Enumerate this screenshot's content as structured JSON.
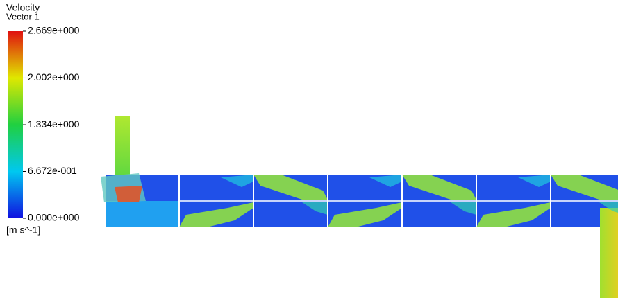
{
  "legend": {
    "title": "Velocity",
    "subtitle": "Vector 1",
    "ticks": [
      {
        "value": 0,
        "label": "0.000e+000"
      },
      {
        "value": 0.6672,
        "label": "6.672e-001"
      },
      {
        "value": 1.334,
        "label": "1.334e+000"
      },
      {
        "value": 2.002,
        "label": "2.002e+000"
      },
      {
        "value": 2.669,
        "label": "2.669e+000"
      }
    ],
    "unit": "[m s^-1]"
  }
}
